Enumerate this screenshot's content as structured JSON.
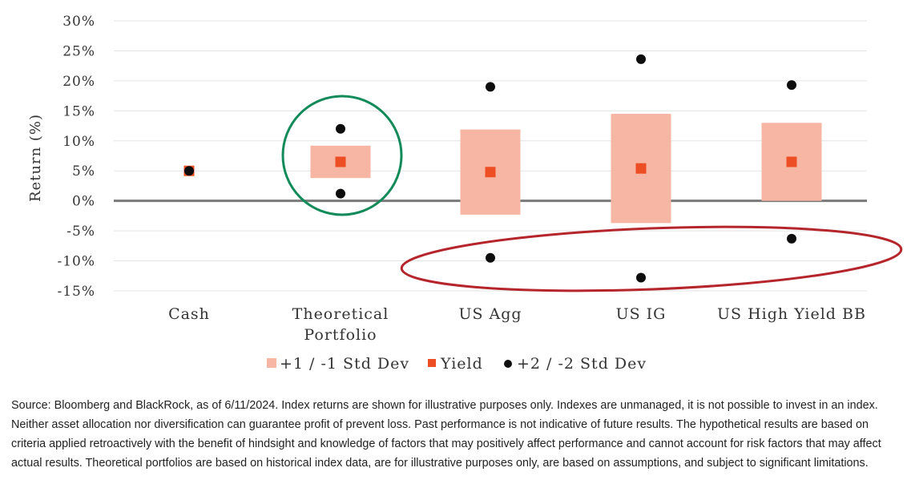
{
  "chart_data": {
    "type": "range-dot",
    "ylabel": "Return (%)",
    "ylim": [
      -15,
      30
    ],
    "yticks": [
      30,
      25,
      20,
      15,
      10,
      5,
      0,
      -5,
      -10,
      -15
    ],
    "ytick_labels": [
      "30%",
      "25%",
      "20%",
      "15%",
      "10%",
      "5%",
      "0%",
      "-5%",
      "-10%",
      "-15%"
    ],
    "grid": true,
    "categories": [
      {
        "lines": [
          "Cash"
        ]
      },
      {
        "lines": [
          "Theoretical",
          "Portfolio"
        ]
      },
      {
        "lines": [
          "US Agg"
        ]
      },
      {
        "lines": [
          "US IG"
        ]
      },
      {
        "lines": [
          "US High Yield BB"
        ]
      }
    ],
    "series": [
      {
        "name": "+1 / -1 Std Dev",
        "kind": "range",
        "low": [
          5,
          3.8,
          -2.3,
          -3.7,
          0
        ],
        "high": [
          5,
          9.2,
          11.9,
          14.5,
          13
        ]
      },
      {
        "name": "Yield",
        "kind": "marker",
        "values": [
          5,
          6.5,
          4.8,
          5.4,
          6.5
        ]
      },
      {
        "name": "+2 / -2 Std Dev",
        "kind": "dots",
        "high": [
          5,
          12,
          19,
          23.6,
          19.3
        ],
        "low": [
          5,
          1.2,
          -9.5,
          -12.8,
          -6.3
        ]
      }
    ],
    "legend": {
      "position": "bottom",
      "items": [
        "+1 / -1 Std Dev",
        "Yield",
        "+2 / -2 Std Dev"
      ]
    },
    "colors": {
      "range": "#f7b6a3",
      "yield": "#ed4e24",
      "dots": "#0d0d0d",
      "zero_line": "#7a7a7a",
      "grid": "#e3e3e3",
      "circle": "#138a5a",
      "ellipse": "#b5262c"
    },
    "annotations": [
      {
        "type": "circle",
        "target": "Theoretical Portfolio"
      },
      {
        "type": "ellipse",
        "target": "downside -2 Std Dev"
      }
    ]
  },
  "footnote": "Source: Bloomberg and BlackRock, as of 6/11/2024. Index returns are shown for illustrative purposes only. Indexes are unmanaged, it is not possible to invest in an index. Neither asset allocation nor diversification can guarantee profit of prevent loss. Past performance is not indicative of future results. The hypothetical results are based on criteria applied retroactively with the benefit of hindsight and knowledge of factors that may positively affect performance and cannot account for risk factors that may affect actual results. Theoretical portfolios are based on historical index data, are for illustrative purposes only, are based on assumptions, and subject to significant limitations."
}
